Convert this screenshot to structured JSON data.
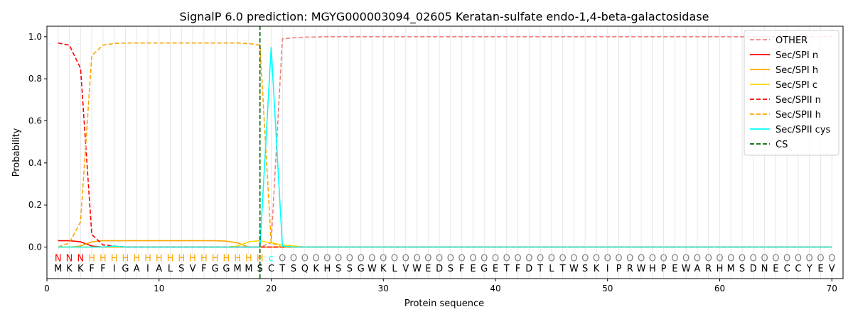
{
  "chart_data": {
    "type": "line",
    "title": "SignalP 6.0 prediction: MGYG000003094_02605 Keratan-sulfate endo-1,4-beta-galactosidase",
    "xlabel": "Protein sequence",
    "ylabel": "Probability",
    "xlim": [
      0,
      71
    ],
    "ylim": [
      -0.15,
      1.05
    ],
    "xticks": [
      0,
      10,
      20,
      30,
      40,
      50,
      60,
      70
    ],
    "yticks": [
      0.0,
      0.2,
      0.4,
      0.6,
      0.8,
      1.0
    ],
    "xtick_labels": [
      "0",
      "10",
      "20",
      "30",
      "40",
      "50",
      "60",
      "70"
    ],
    "ytick_labels": [
      "0.0",
      "0.2",
      "0.4",
      "0.6",
      "0.8",
      "1.0"
    ],
    "legend_position": "top-right",
    "sequence": [
      "M",
      "K",
      "K",
      "F",
      "F",
      "I",
      "G",
      "A",
      "I",
      "A",
      "L",
      "S",
      "V",
      "F",
      "G",
      "G",
      "M",
      "M",
      "S",
      "C",
      "T",
      "S",
      "Q",
      "K",
      "H",
      "S",
      "S",
      "G",
      "W",
      "K",
      "L",
      "V",
      "W",
      "E",
      "D",
      "S",
      "F",
      "E",
      "G",
      "E",
      "T",
      "F",
      "D",
      "T",
      "L",
      "T",
      "W",
      "S",
      "K",
      "I",
      "P",
      "R",
      "W",
      "H",
      "P",
      "E",
      "W",
      "A",
      "R",
      "H",
      "M",
      "S",
      "D",
      "N",
      "E",
      "C",
      "C",
      "Y",
      "E",
      "V"
    ],
    "labels": [
      "N",
      "N",
      "N",
      "H",
      "H",
      "H",
      "H",
      "H",
      "H",
      "H",
      "H",
      "H",
      "H",
      "H",
      "H",
      "H",
      "H",
      "H",
      "H",
      "c",
      "O",
      "O",
      "O",
      "O",
      "O",
      "O",
      "O",
      "O",
      "O",
      "O",
      "O",
      "O",
      "O",
      "O",
      "O",
      "O",
      "O",
      "O",
      "O",
      "O",
      "O",
      "O",
      "O",
      "O",
      "O",
      "O",
      "O",
      "O",
      "O",
      "O",
      "O",
      "O",
      "O",
      "O",
      "O",
      "O",
      "O",
      "O",
      "O",
      "O",
      "O",
      "O",
      "O",
      "O",
      "O",
      "O",
      "O",
      "O",
      "O",
      "O"
    ],
    "label_colors": {
      "N": "#ff0000",
      "H": "#ffa500",
      "c": "#00ffff",
      "O": "#808080"
    },
    "cleavage_site": 19,
    "series": [
      {
        "name": "OTHER",
        "color": "#f08080",
        "dash": true,
        "values": [
          0.0,
          0.0,
          0.0,
          0.0,
          0.0,
          0.0,
          0.0,
          0.0,
          0.0,
          0.0,
          0.0,
          0.0,
          0.0,
          0.0,
          0.0,
          0.0,
          0.0,
          0.0,
          0.0,
          0.02,
          0.99,
          0.995,
          0.998,
          0.999,
          1.0,
          1.0,
          1.0,
          1.0,
          1.0,
          1.0,
          1.0,
          1.0,
          1.0,
          1.0,
          1.0,
          1.0,
          1.0,
          1.0,
          1.0,
          1.0,
          1.0,
          1.0,
          1.0,
          1.0,
          1.0,
          1.0,
          1.0,
          1.0,
          1.0,
          1.0,
          1.0,
          1.0,
          1.0,
          1.0,
          1.0,
          1.0,
          1.0,
          1.0,
          1.0,
          1.0,
          1.0,
          1.0,
          1.0,
          1.0,
          1.0,
          1.0,
          1.0,
          1.0,
          1.0,
          1.0
        ]
      },
      {
        "name": "Sec/SPI n",
        "color": "#ff0000",
        "dash": false,
        "values": [
          0.03,
          0.03,
          0.025,
          0.005,
          0.0,
          0.0,
          0.0,
          0.0,
          0.0,
          0.0,
          0.0,
          0.0,
          0.0,
          0.0,
          0.0,
          0.0,
          0.0,
          0.0,
          0.0,
          0.0,
          0.0,
          0.0,
          0.0,
          0.0,
          0.0,
          0.0,
          0.0,
          0.0,
          0.0,
          0.0,
          0.0,
          0.0,
          0.0,
          0.0,
          0.0,
          0.0,
          0.0,
          0.0,
          0.0,
          0.0,
          0.0,
          0.0,
          0.0,
          0.0,
          0.0,
          0.0,
          0.0,
          0.0,
          0.0,
          0.0,
          0.0,
          0.0,
          0.0,
          0.0,
          0.0,
          0.0,
          0.0,
          0.0,
          0.0,
          0.0,
          0.0,
          0.0,
          0.0,
          0.0,
          0.0,
          0.0,
          0.0,
          0.0,
          0.0,
          0.0
        ]
      },
      {
        "name": "Sec/SPI h",
        "color": "#ffa500",
        "dash": false,
        "values": [
          0.0,
          0.0,
          0.005,
          0.025,
          0.03,
          0.03,
          0.03,
          0.03,
          0.03,
          0.03,
          0.03,
          0.03,
          0.03,
          0.03,
          0.03,
          0.028,
          0.02,
          0.0,
          0.0,
          0.0,
          0.0,
          0.0,
          0.0,
          0.0,
          0.0,
          0.0,
          0.0,
          0.0,
          0.0,
          0.0,
          0.0,
          0.0,
          0.0,
          0.0,
          0.0,
          0.0,
          0.0,
          0.0,
          0.0,
          0.0,
          0.0,
          0.0,
          0.0,
          0.0,
          0.0,
          0.0,
          0.0,
          0.0,
          0.0,
          0.0,
          0.0,
          0.0,
          0.0,
          0.0,
          0.0,
          0.0,
          0.0,
          0.0,
          0.0,
          0.0,
          0.0,
          0.0,
          0.0,
          0.0,
          0.0,
          0.0,
          0.0,
          0.0,
          0.0,
          0.0
        ]
      },
      {
        "name": "Sec/SPI c",
        "color": "#ffd700",
        "dash": false,
        "values": [
          0.0,
          0.0,
          0.0,
          0.0,
          0.0,
          0.0,
          0.0,
          0.0,
          0.0,
          0.0,
          0.0,
          0.0,
          0.0,
          0.0,
          0.0,
          0.0,
          0.005,
          0.025,
          0.03,
          0.02,
          0.01,
          0.005,
          0.0,
          0.0,
          0.0,
          0.0,
          0.0,
          0.0,
          0.0,
          0.0,
          0.0,
          0.0,
          0.0,
          0.0,
          0.0,
          0.0,
          0.0,
          0.0,
          0.0,
          0.0,
          0.0,
          0.0,
          0.0,
          0.0,
          0.0,
          0.0,
          0.0,
          0.0,
          0.0,
          0.0,
          0.0,
          0.0,
          0.0,
          0.0,
          0.0,
          0.0,
          0.0,
          0.0,
          0.0,
          0.0,
          0.0,
          0.0,
          0.0,
          0.0,
          0.0,
          0.0,
          0.0,
          0.0,
          0.0,
          0.0
        ]
      },
      {
        "name": "Sec/SPII n",
        "color": "#ff0000",
        "dash": true,
        "values": [
          0.97,
          0.96,
          0.85,
          0.06,
          0.01,
          0.005,
          0.0,
          0.0,
          0.0,
          0.0,
          0.0,
          0.0,
          0.0,
          0.0,
          0.0,
          0.0,
          0.0,
          0.0,
          0.0,
          0.0,
          0.0,
          0.0,
          0.0,
          0.0,
          0.0,
          0.0,
          0.0,
          0.0,
          0.0,
          0.0,
          0.0,
          0.0,
          0.0,
          0.0,
          0.0,
          0.0,
          0.0,
          0.0,
          0.0,
          0.0,
          0.0,
          0.0,
          0.0,
          0.0,
          0.0,
          0.0,
          0.0,
          0.0,
          0.0,
          0.0,
          0.0,
          0.0,
          0.0,
          0.0,
          0.0,
          0.0,
          0.0,
          0.0,
          0.0,
          0.0,
          0.0,
          0.0,
          0.0,
          0.0,
          0.0,
          0.0,
          0.0,
          0.0,
          0.0,
          0.0
        ]
      },
      {
        "name": "Sec/SPII h",
        "color": "#ffa500",
        "dash": true,
        "values": [
          0.0,
          0.02,
          0.12,
          0.91,
          0.96,
          0.968,
          0.97,
          0.97,
          0.97,
          0.97,
          0.97,
          0.97,
          0.97,
          0.97,
          0.97,
          0.97,
          0.97,
          0.968,
          0.96,
          0.02,
          0.0,
          0.0,
          0.0,
          0.0,
          0.0,
          0.0,
          0.0,
          0.0,
          0.0,
          0.0,
          0.0,
          0.0,
          0.0,
          0.0,
          0.0,
          0.0,
          0.0,
          0.0,
          0.0,
          0.0,
          0.0,
          0.0,
          0.0,
          0.0,
          0.0,
          0.0,
          0.0,
          0.0,
          0.0,
          0.0,
          0.0,
          0.0,
          0.0,
          0.0,
          0.0,
          0.0,
          0.0,
          0.0,
          0.0,
          0.0,
          0.0,
          0.0,
          0.0,
          0.0,
          0.0,
          0.0,
          0.0,
          0.0,
          0.0,
          0.0
        ]
      },
      {
        "name": "Sec/SPII cys",
        "color": "#00ffff",
        "dash": false,
        "values": [
          0.0,
          0.0,
          0.0,
          0.0,
          0.0,
          0.005,
          0.0,
          0.0,
          0.0,
          0.0,
          0.0,
          0.0,
          0.0,
          0.0,
          0.0,
          0.0,
          0.0,
          0.0,
          0.0,
          0.95,
          0.005,
          0.0,
          0.0,
          0.0,
          0.0,
          0.0,
          0.0,
          0.0,
          0.0,
          0.0,
          0.0,
          0.0,
          0.0,
          0.0,
          0.0,
          0.0,
          0.0,
          0.0,
          0.0,
          0.0,
          0.0,
          0.0,
          0.0,
          0.0,
          0.0,
          0.0,
          0.0,
          0.0,
          0.0,
          0.0,
          0.0,
          0.0,
          0.0,
          0.0,
          0.0,
          0.0,
          0.0,
          0.0,
          0.0,
          0.0,
          0.0,
          0.0,
          0.0,
          0.0,
          0.0,
          0.0,
          0.0,
          0.0,
          0.0,
          0.0
        ]
      }
    ],
    "cs_legend": {
      "name": "CS",
      "color": "#006400"
    }
  }
}
